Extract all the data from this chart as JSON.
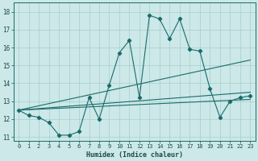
{
  "xlabel": "Humidex (Indice chaleur)",
  "bg_color": "#cce8e8",
  "grid_color": "#aacccc",
  "line_color": "#1a6b6b",
  "xlim": [
    -0.5,
    23.5
  ],
  "ylim": [
    10.8,
    18.5
  ],
  "xticks": [
    0,
    1,
    2,
    3,
    4,
    5,
    6,
    7,
    8,
    9,
    10,
    11,
    12,
    13,
    14,
    15,
    16,
    17,
    18,
    19,
    20,
    21,
    22,
    23
  ],
  "yticks": [
    11,
    12,
    13,
    14,
    15,
    16,
    17,
    18
  ],
  "main_series": [
    12.5,
    12.2,
    12.1,
    11.8,
    11.1,
    11.1,
    11.3,
    13.2,
    12.0,
    13.9,
    15.7,
    16.4,
    13.2,
    17.8,
    17.6,
    16.5,
    17.6,
    15.9,
    15.8,
    13.7,
    12.1,
    13.0,
    13.2,
    13.3
  ],
  "line1_x": [
    0,
    23
  ],
  "line1_y": [
    12.5,
    15.3
  ],
  "line2_x": [
    0,
    23
  ],
  "line2_y": [
    12.5,
    13.5
  ],
  "line3_x": [
    0,
    23
  ],
  "line3_y": [
    12.5,
    13.1
  ]
}
